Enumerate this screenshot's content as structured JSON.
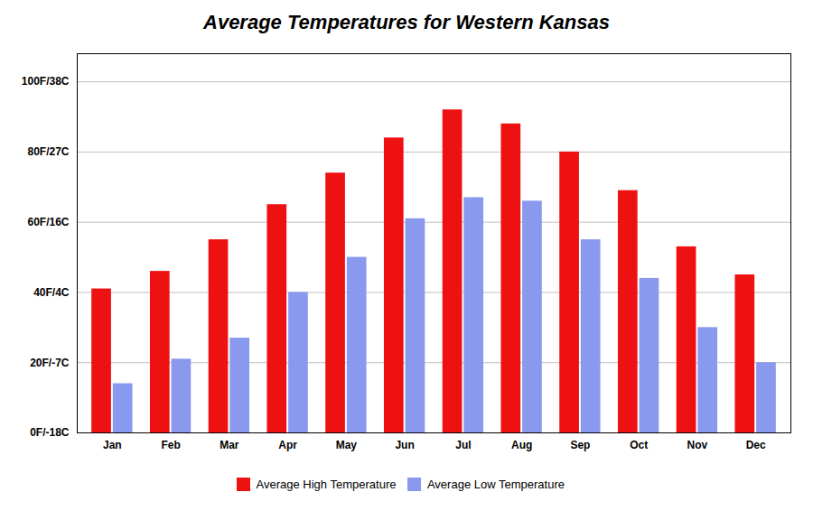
{
  "chart_data": {
    "type": "bar",
    "title": "Average Temperatures for Western Kansas",
    "categories": [
      "Jan",
      "Feb",
      "Mar",
      "Apr",
      "May",
      "Jun",
      "Jul",
      "Aug",
      "Sep",
      "Oct",
      "Nov",
      "Dec"
    ],
    "series": [
      {
        "name": "Average High Temperature",
        "color": "#ee1111",
        "values": [
          41,
          46,
          55,
          65,
          74,
          84,
          92,
          88,
          80,
          69,
          53,
          45
        ]
      },
      {
        "name": "Average Low Temperature",
        "color": "#8899ee",
        "values": [
          14,
          21,
          27,
          40,
          50,
          61,
          67,
          66,
          55,
          44,
          30,
          20
        ]
      }
    ],
    "ylim": [
      0,
      108
    ],
    "yticks": [
      {
        "value": 0,
        "label": "0F/-18C"
      },
      {
        "value": 20,
        "label": "20F/-7C"
      },
      {
        "value": 40,
        "label": "40F/4C"
      },
      {
        "value": 60,
        "label": "60F/16C"
      },
      {
        "value": 80,
        "label": "80F/27C"
      },
      {
        "value": 100,
        "label": "100F/38C"
      }
    ],
    "grid": true,
    "legend": "bottom"
  }
}
